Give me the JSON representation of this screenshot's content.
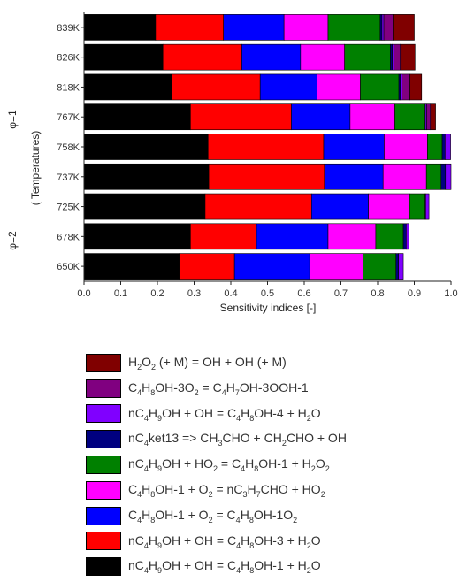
{
  "chart_data": {
    "type": "bar",
    "orientation": "horizontal",
    "stacked": true,
    "categories": [
      "839K",
      "826K",
      "818K",
      "767K",
      "758K",
      "737K",
      "725K",
      "678K",
      "650K"
    ],
    "group_labels": [
      "φ=1",
      "( Temperatures)",
      "φ=2"
    ],
    "xlabel": "Sensitivity indices [-]",
    "xlim": [
      0.0,
      1.0
    ],
    "xticks": [
      "0.0",
      "0.1",
      "0.2",
      "0.3",
      "0.4",
      "0.5",
      "0.6",
      "0.7",
      "0.8",
      "0.9",
      "1.0"
    ],
    "legend_position": "bottom",
    "series": [
      {
        "label_html": "nC<sub>4</sub>H<sub>9</sub>OH + OH = C<sub>4</sub>H<sub>8</sub>OH-1 + H<sub>2</sub>O",
        "color": "#000000",
        "values": [
          0.195,
          0.215,
          0.24,
          0.29,
          0.338,
          0.34,
          0.33,
          0.29,
          0.26
        ]
      },
      {
        "label_html": "nC<sub>4</sub>H<sub>9</sub>OH + OH = C<sub>4</sub>H<sub>8</sub>OH-3 + H<sub>2</sub>O",
        "color": "#ff0000",
        "values": [
          0.185,
          0.215,
          0.24,
          0.275,
          0.315,
          0.315,
          0.29,
          0.18,
          0.15
        ]
      },
      {
        "label_html": "C<sub>4</sub>H<sub>8</sub>OH-1 + O<sub>2</sub> = C<sub>4</sub>H<sub>8</sub>OH-1O<sub>2</sub>",
        "color": "#0000ff",
        "values": [
          0.165,
          0.16,
          0.155,
          0.16,
          0.165,
          0.16,
          0.155,
          0.195,
          0.205
        ]
      },
      {
        "label_html": "C<sub>4</sub>H<sub>8</sub>OH-1 + O<sub>2</sub> = nC<sub>3</sub>H<sub>7</sub>CHO + HO<sub>2</sub>",
        "color": "#ff00ff",
        "values": [
          0.12,
          0.12,
          0.118,
          0.122,
          0.118,
          0.118,
          0.112,
          0.13,
          0.145
        ]
      },
      {
        "label_html": "nC<sub>4</sub>H<sub>9</sub>OH + HO<sub>2</sub> = C<sub>4</sub>H<sub>8</sub>OH-1 + H<sub>2</sub>O<sub>2</sub>",
        "color": "#008000",
        "values": [
          0.142,
          0.125,
          0.105,
          0.08,
          0.04,
          0.04,
          0.04,
          0.075,
          0.09
        ]
      },
      {
        "label_html": "nC<sub>4</sub>ket13 =&gt; CH<sub>3</sub>CHO + CH<sub>2</sub>CHO + OH",
        "color": "#000080",
        "values": [
          0.005,
          0.005,
          0.004,
          0.003,
          0.008,
          0.012,
          0.004,
          0.008,
          0.007
        ]
      },
      {
        "label_html": "nC<sub>4</sub>H<sub>9</sub>OH + OH = C<sub>4</sub>H<sub>8</sub>OH-4 + H<sub>2</sub>O",
        "color": "#8000ff",
        "values": [
          0.005,
          0.004,
          0.004,
          0.004,
          0.015,
          0.015,
          0.009,
          0.007,
          0.013
        ]
      },
      {
        "label_html": "C<sub>4</sub>H<sub>8</sub>OH-3O<sub>2</sub> = C<sub>4</sub>H<sub>7</sub>OH-3OOH-1",
        "color": "#800080",
        "values": [
          0.025,
          0.018,
          0.022,
          0.01,
          0.0,
          0.0,
          0.0,
          0.0,
          0.0
        ]
      },
      {
        "label_html": "H<sub>2</sub>O<sub>2</sub> (+ M) = OH + OH (+ M)",
        "color": "#800000",
        "values": [
          0.058,
          0.04,
          0.032,
          0.014,
          0.0,
          0.0,
          0.0,
          0.0,
          0.0
        ]
      }
    ],
    "legend_order": [
      8,
      7,
      6,
      5,
      4,
      3,
      2,
      1,
      0
    ]
  }
}
